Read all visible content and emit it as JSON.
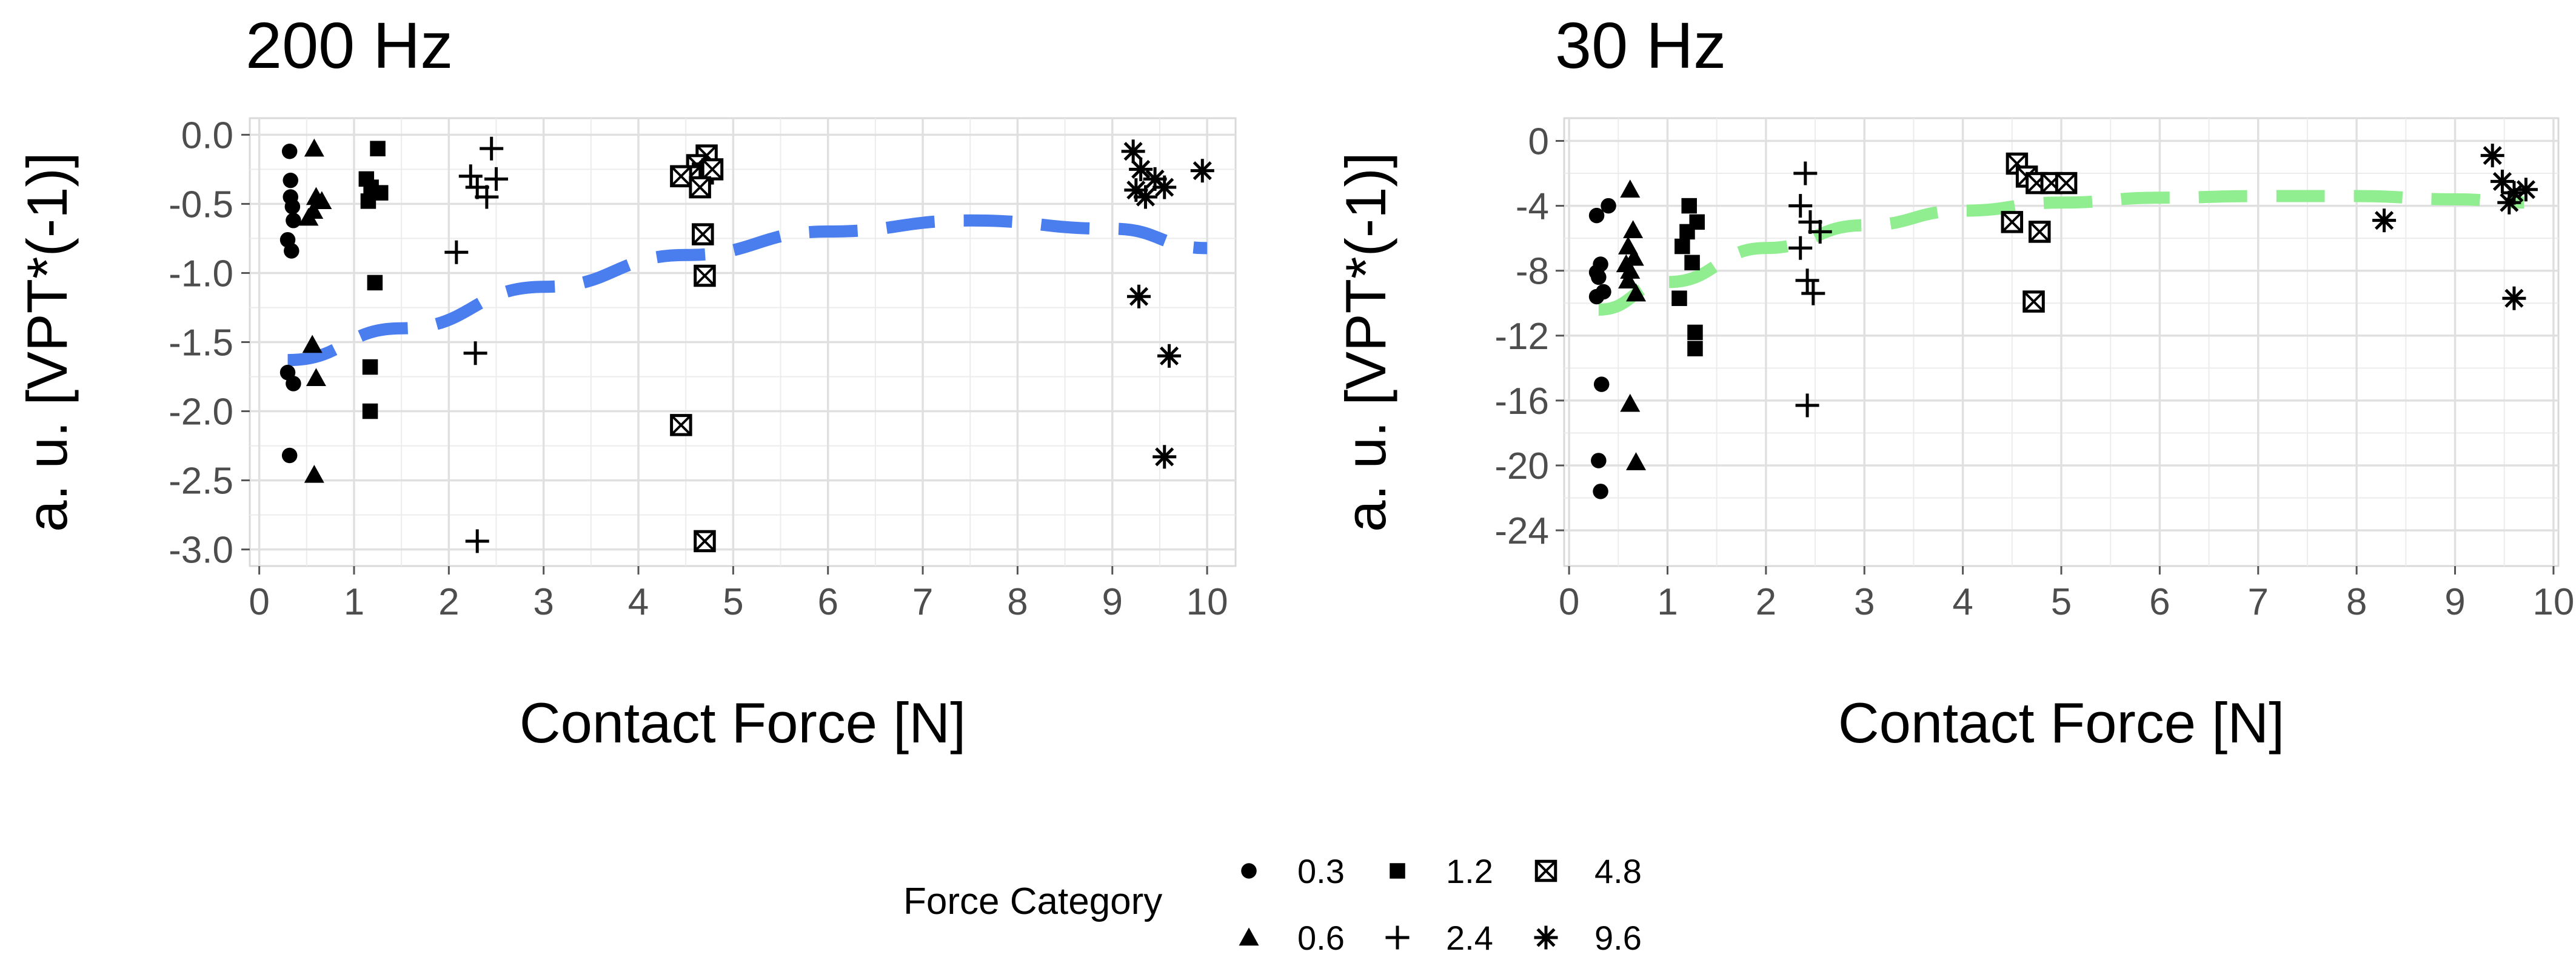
{
  "legend": {
    "title": "Force Category",
    "items": [
      {
        "label": "0.3",
        "shape": "circle"
      },
      {
        "label": "1.2",
        "shape": "square"
      },
      {
        "label": "4.8",
        "shape": "boxed-x"
      },
      {
        "label": "0.6",
        "shape": "triangle"
      },
      {
        "label": "2.4",
        "shape": "plus"
      },
      {
        "label": "9.6",
        "shape": "asterisk"
      }
    ]
  },
  "chart_data": [
    {
      "type": "scatter",
      "title": "200 Hz",
      "xlabel": "Contact Force [N]",
      "ylabel": "a. u. [VPT*(-1)]",
      "xlim": [
        -0.1,
        10.3
      ],
      "ylim": [
        -3.12,
        0.12
      ],
      "xticks": [
        0,
        1,
        2,
        3,
        4,
        5,
        6,
        7,
        8,
        9,
        10
      ],
      "xtick_labels": [
        "0",
        "1",
        "2",
        "3",
        "4",
        "5",
        "6",
        "7",
        "8",
        "9",
        "10"
      ],
      "yticks": [
        0,
        -0.5,
        -1.0,
        -1.5,
        -2.0,
        -2.5,
        -3.0
      ],
      "ytick_labels": [
        "0.0",
        "-0.5",
        "-1.0",
        "-1.5",
        "-2.0",
        "-2.5",
        "-3.0"
      ],
      "grid": true,
      "fit": {
        "color": "#4a7ded",
        "points": [
          [
            0.3,
            -1.63
          ],
          [
            1.5,
            -1.4
          ],
          [
            3,
            -1.1
          ],
          [
            4.5,
            -0.87
          ],
          [
            6,
            -0.7
          ],
          [
            7.5,
            -0.62
          ],
          [
            9,
            -0.68
          ],
          [
            10,
            -0.82
          ]
        ]
      },
      "series": [
        {
          "name": "0.3",
          "shape": "circle",
          "points": [
            [
              0.32,
              -0.12
            ],
            [
              0.33,
              -0.33
            ],
            [
              0.33,
              -0.45
            ],
            [
              0.35,
              -0.52
            ],
            [
              0.36,
              -0.62
            ],
            [
              0.3,
              -0.76
            ],
            [
              0.34,
              -0.84
            ],
            [
              0.3,
              -1.72
            ],
            [
              0.36,
              -1.8
            ],
            [
              0.32,
              -2.32
            ]
          ]
        },
        {
          "name": "0.6",
          "shape": "triangle",
          "points": [
            [
              0.58,
              -0.1
            ],
            [
              0.6,
              -0.45
            ],
            [
              0.57,
              -0.55
            ],
            [
              0.52,
              -0.6
            ],
            [
              0.66,
              -0.48
            ],
            [
              0.56,
              -1.52
            ],
            [
              0.6,
              -1.76
            ],
            [
              0.58,
              -2.46
            ]
          ]
        },
        {
          "name": "1.2",
          "shape": "square",
          "points": [
            [
              1.25,
              -0.1
            ],
            [
              1.13,
              -0.32
            ],
            [
              1.18,
              -0.38
            ],
            [
              1.28,
              -0.42
            ],
            [
              1.15,
              -0.48
            ],
            [
              1.22,
              -1.07
            ],
            [
              1.17,
              -1.68
            ],
            [
              1.17,
              -2.0
            ]
          ]
        },
        {
          "name": "2.4",
          "shape": "plus",
          "points": [
            [
              2.45,
              -0.1
            ],
            [
              2.23,
              -0.3
            ],
            [
              2.3,
              -0.38
            ],
            [
              2.4,
              -0.45
            ],
            [
              2.5,
              -0.32
            ],
            [
              2.08,
              -0.85
            ],
            [
              2.28,
              -1.58
            ],
            [
              2.3,
              -2.94
            ]
          ]
        },
        {
          "name": "4.8",
          "shape": "boxed-x",
          "points": [
            [
              4.72,
              -0.15
            ],
            [
              4.62,
              -0.22
            ],
            [
              4.68,
              -0.28
            ],
            [
              4.55,
              -0.3
            ],
            [
              4.45,
              -0.3
            ],
            [
              4.78,
              -0.25
            ],
            [
              4.65,
              -0.38
            ],
            [
              4.68,
              -0.72
            ],
            [
              4.7,
              -1.02
            ],
            [
              4.45,
              -2.1
            ],
            [
              4.7,
              -2.94
            ]
          ]
        },
        {
          "name": "9.6",
          "shape": "asterisk",
          "points": [
            [
              9.22,
              -0.12
            ],
            [
              9.3,
              -0.25
            ],
            [
              9.45,
              -0.32
            ],
            [
              9.25,
              -0.4
            ],
            [
              9.35,
              -0.45
            ],
            [
              9.55,
              -0.38
            ],
            [
              9.95,
              -0.26
            ],
            [
              9.28,
              -1.17
            ],
            [
              9.6,
              -1.6
            ],
            [
              9.55,
              -2.33
            ]
          ]
        }
      ]
    },
    {
      "type": "scatter",
      "title": "30 Hz",
      "xlabel": "Contact Force [N]",
      "ylabel": "a. u. [VPT*(-1)]",
      "xlim": [
        -0.05,
        10.05
      ],
      "ylim": [
        -26.2,
        1.4
      ],
      "xticks": [
        0,
        1,
        2,
        3,
        4,
        5,
        6,
        7,
        8,
        9,
        10
      ],
      "xtick_labels": [
        "0",
        "1",
        "2",
        "3",
        "4",
        "5",
        "6",
        "7",
        "8",
        "9",
        "10"
      ],
      "yticks": [
        0,
        -4,
        -8,
        -12,
        -16,
        -20,
        -24
      ],
      "ytick_labels": [
        "0",
        "-4",
        "-8",
        "-12",
        "-16",
        "-20",
        "-24"
      ],
      "grid": true,
      "fit": {
        "color": "#90ee90",
        "points": [
          [
            0.3,
            -10.4
          ],
          [
            1,
            -8.7
          ],
          [
            2,
            -6.6
          ],
          [
            3,
            -5.2
          ],
          [
            4,
            -4.3
          ],
          [
            5,
            -3.8
          ],
          [
            6,
            -3.5
          ],
          [
            7,
            -3.4
          ],
          [
            8,
            -3.4
          ],
          [
            9,
            -3.6
          ],
          [
            9.7,
            -3.8
          ]
        ]
      },
      "series": [
        {
          "name": "0.3",
          "shape": "circle",
          "points": [
            [
              0.28,
              -4.6
            ],
            [
              0.4,
              -4.0
            ],
            [
              0.32,
              -7.6
            ],
            [
              0.28,
              -8.1
            ],
            [
              0.3,
              -8.4
            ],
            [
              0.35,
              -9.3
            ],
            [
              0.28,
              -9.6
            ],
            [
              0.33,
              -15.0
            ],
            [
              0.3,
              -19.7
            ],
            [
              0.32,
              -21.6
            ]
          ]
        },
        {
          "name": "0.6",
          "shape": "triangle",
          "points": [
            [
              0.62,
              -3.0
            ],
            [
              0.65,
              -5.5
            ],
            [
              0.6,
              -6.5
            ],
            [
              0.66,
              -7.2
            ],
            [
              0.58,
              -7.6
            ],
            [
              0.62,
              -8.0
            ],
            [
              0.6,
              -8.6
            ],
            [
              0.68,
              -9.4
            ],
            [
              0.62,
              -16.2
            ],
            [
              0.68,
              -19.8
            ]
          ]
        },
        {
          "name": "1.2",
          "shape": "square",
          "points": [
            [
              1.22,
              -4.0
            ],
            [
              1.3,
              -5.0
            ],
            [
              1.2,
              -5.6
            ],
            [
              1.15,
              -6.5
            ],
            [
              1.25,
              -7.5
            ],
            [
              1.12,
              -9.7
            ],
            [
              1.28,
              -11.8
            ],
            [
              1.28,
              -12.8
            ]
          ]
        },
        {
          "name": "2.4",
          "shape": "plus",
          "points": [
            [
              2.4,
              -2.0
            ],
            [
              2.35,
              -4.0
            ],
            [
              2.45,
              -5.0
            ],
            [
              2.55,
              -5.6
            ],
            [
              2.35,
              -6.6
            ],
            [
              2.42,
              -8.6
            ],
            [
              2.48,
              -9.4
            ],
            [
              2.42,
              -16.3
            ]
          ]
        },
        {
          "name": "4.8",
          "shape": "boxed-x",
          "points": [
            [
              4.55,
              -1.4
            ],
            [
              4.65,
              -2.2
            ],
            [
              4.75,
              -2.6
            ],
            [
              4.9,
              -2.6
            ],
            [
              5.05,
              -2.6
            ],
            [
              4.5,
              -5.0
            ],
            [
              4.78,
              -5.6
            ],
            [
              4.72,
              -9.9
            ]
          ]
        },
        {
          "name": "9.6",
          "shape": "asterisk",
          "points": [
            [
              9.38,
              -0.9
            ],
            [
              9.48,
              -2.5
            ],
            [
              9.6,
              -3.2
            ],
            [
              9.72,
              -3.0
            ],
            [
              9.55,
              -3.8
            ],
            [
              8.28,
              -4.9
            ],
            [
              9.6,
              -9.7
            ]
          ]
        }
      ]
    }
  ]
}
